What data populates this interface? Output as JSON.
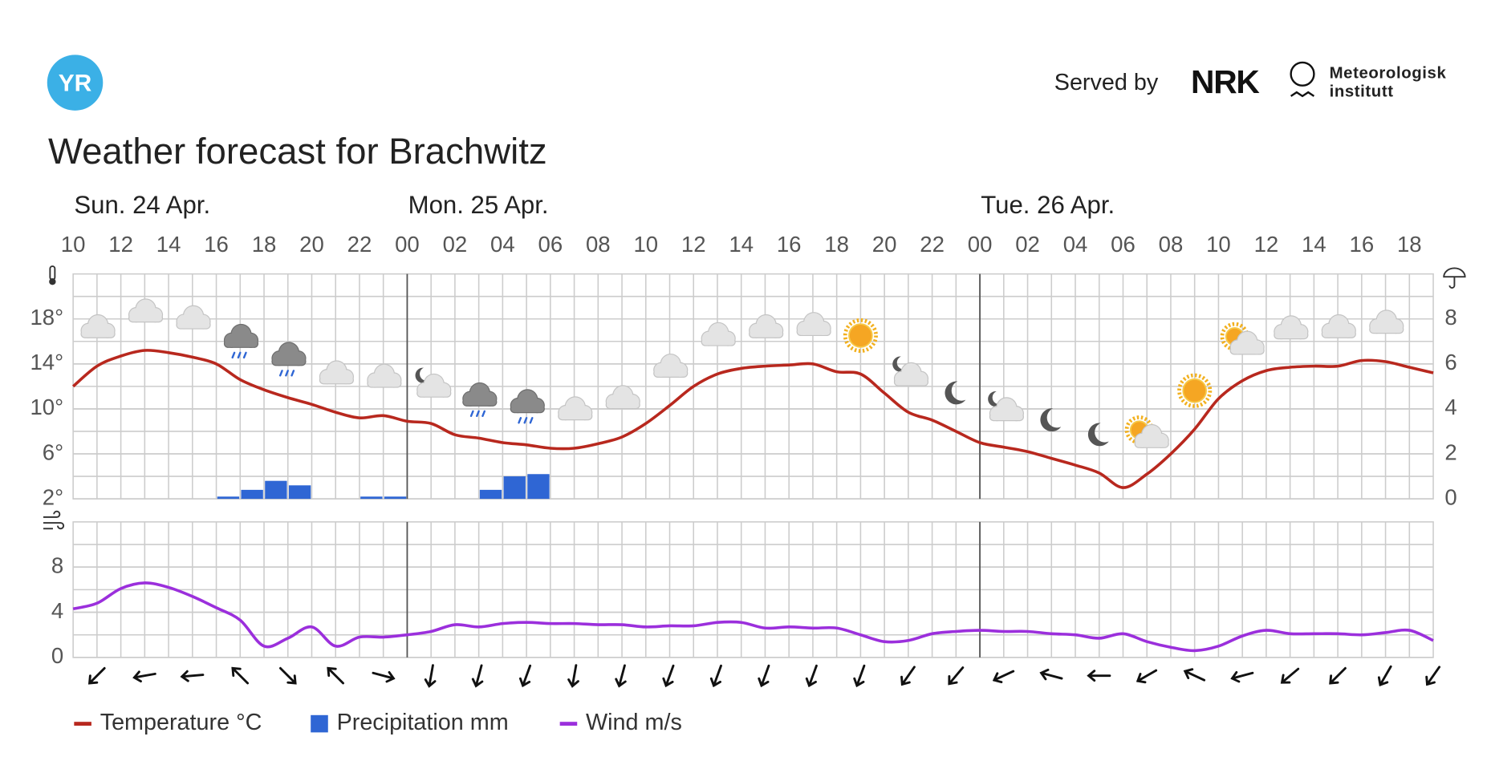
{
  "header": {
    "logo": "YR",
    "served_by": "Served by",
    "partner": "NRK",
    "institute_line1": "Meteorologisk",
    "institute_line2": "institutt"
  },
  "chart_data": {
    "type": "line",
    "title": "Weather forecast for Brachwitz",
    "days": [
      "Sun. 24 Apr.",
      "Mon. 25 Apr.",
      "Tue. 26 Apr."
    ],
    "categories": [
      "10",
      null,
      "12",
      null,
      "14",
      null,
      "16",
      null,
      "18",
      null,
      "20",
      null,
      "22",
      null,
      "00",
      null,
      "02",
      null,
      "04",
      null,
      "06",
      null,
      "08",
      null,
      "10",
      null,
      "12",
      null,
      "14",
      null,
      "16",
      null,
      "18",
      null,
      "20",
      null,
      "22",
      null,
      "00",
      null,
      "02",
      null,
      "04",
      null,
      "06",
      null,
      "08",
      null,
      "10",
      null,
      "12",
      null,
      "14",
      null,
      "16",
      null,
      "18",
      null
    ],
    "series": [
      {
        "name": "Temperature °C",
        "type": "line",
        "axis": "y",
        "color": "#b8281e",
        "values": [
          12.0,
          13.8,
          14.7,
          15.2,
          15.0,
          14.6,
          14.0,
          12.6,
          11.7,
          11.0,
          10.4,
          9.7,
          9.2,
          9.4,
          8.9,
          8.7,
          7.7,
          7.4,
          7.0,
          6.8,
          6.5,
          6.5,
          6.9,
          7.5,
          8.7,
          10.3,
          12.0,
          13.1,
          13.6,
          13.8,
          13.9,
          14.0,
          13.3,
          13.1,
          11.4,
          9.7,
          9.0,
          8.0,
          7.0,
          6.6,
          6.2,
          5.6,
          5.0,
          4.3,
          3.0,
          4.2,
          6.0,
          8.2,
          10.9,
          12.5,
          13.4,
          13.7,
          13.8,
          13.8,
          14.3,
          14.2,
          13.7,
          13.2
        ]
      },
      {
        "name": "Precipitation mm",
        "type": "bar",
        "axis": "y2",
        "color": "#2f66d4",
        "values": [
          0,
          0,
          0,
          0,
          0,
          0,
          0.1,
          0.4,
          0.8,
          0.6,
          0,
          0,
          0.1,
          0.1,
          0,
          0,
          0,
          0.4,
          1.0,
          1.1,
          0,
          0,
          0,
          0,
          0,
          0,
          0,
          0,
          0,
          0,
          0,
          0,
          0,
          0,
          0,
          0,
          0,
          0,
          0,
          0,
          0,
          0,
          0,
          0,
          0,
          0,
          0,
          0,
          0,
          0,
          0,
          0,
          0,
          0,
          0,
          0,
          0,
          0
        ]
      },
      {
        "name": "Wind m/s",
        "type": "line",
        "axis": "y3",
        "color": "#9b2fdc",
        "values": [
          4.3,
          4.8,
          6.1,
          6.6,
          6.2,
          5.4,
          4.4,
          3.3,
          1.0,
          1.7,
          2.7,
          1.0,
          1.8,
          1.8,
          2.0,
          2.3,
          2.9,
          2.7,
          3.0,
          3.1,
          3.0,
          3.0,
          2.9,
          2.9,
          2.7,
          2.8,
          2.8,
          3.1,
          3.1,
          2.6,
          2.7,
          2.6,
          2.6,
          2.0,
          1.4,
          1.5,
          2.1,
          2.3,
          2.4,
          2.3,
          2.3,
          2.1,
          2.0,
          1.7,
          2.1,
          1.4,
          0.9,
          0.6,
          1.0,
          1.9,
          2.4,
          2.1,
          2.1,
          2.1,
          2.0,
          2.2,
          2.4,
          1.5
        ]
      }
    ],
    "wind_direction": [
      null,
      225,
      null,
      260,
      null,
      265,
      null,
      315,
      null,
      135,
      null,
      315,
      null,
      105,
      null,
      190,
      null,
      195,
      null,
      200,
      null,
      190,
      null,
      195,
      null,
      200,
      null,
      200,
      null,
      200,
      null,
      200,
      null,
      200,
      null,
      215,
      null,
      220,
      null,
      245,
      null,
      285,
      null,
      270,
      null,
      240,
      null,
      295,
      null,
      255,
      null,
      230,
      null,
      225,
      null,
      210,
      null,
      215
    ],
    "ylim": [
      2,
      22
    ],
    "yticks": [
      {
        "value": 2,
        "label": "2°"
      },
      {
        "value": 6,
        "label": "6°"
      },
      {
        "value": 10,
        "label": "10°"
      },
      {
        "value": 14,
        "label": "14°"
      },
      {
        "value": 18,
        "label": "18°"
      }
    ],
    "y2lim": [
      0,
      10
    ],
    "y2ticks": [
      0,
      2,
      4,
      6,
      8
    ],
    "y3lim": [
      0,
      12
    ],
    "y3ticks": [
      0,
      4,
      8
    ],
    "grid": true
  }
}
